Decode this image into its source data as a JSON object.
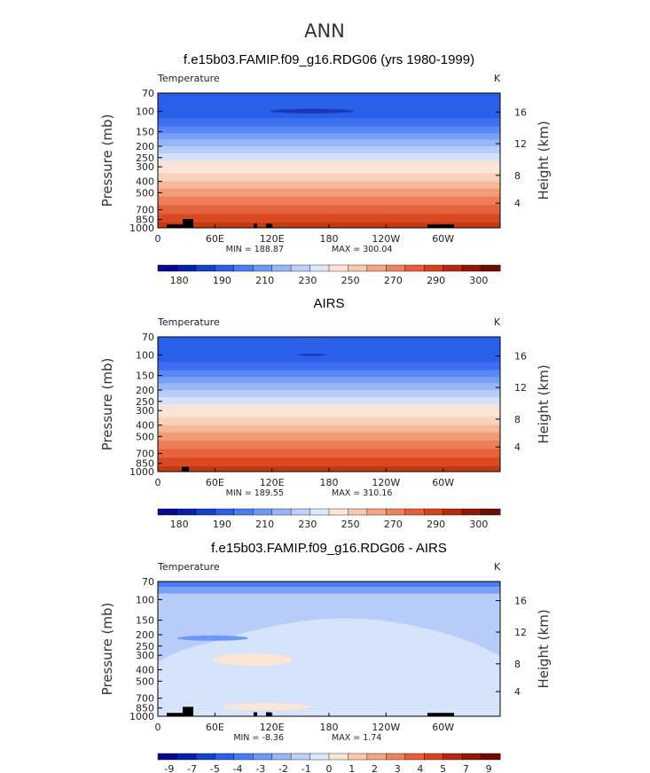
{
  "figure": {
    "title": "ANN"
  },
  "colors": {
    "temp_bar": [
      "#08088c",
      "#0a1fa8",
      "#1540c8",
      "#2a60e8",
      "#4a7cf2",
      "#6e98f6",
      "#96b6f8",
      "#bcd2fb",
      "#dde8fd",
      "#fbe6d6",
      "#f8c8ad",
      "#f4a585",
      "#ef825e",
      "#e85e38",
      "#d6421a",
      "#b52a0c",
      "#8f1806",
      "#6e0c02"
    ],
    "diff_bar": [
      "#08088c",
      "#0a1fa8",
      "#1540c8",
      "#2a60e8",
      "#4a7cf2",
      "#6e98f6",
      "#96b6f8",
      "#bcd2fb",
      "#dde8fd",
      "#fbe6d6",
      "#f8c8ad",
      "#f4a585",
      "#ef825e",
      "#e85e38",
      "#d6421a",
      "#b52a0c",
      "#8f1806",
      "#6e0c02"
    ]
  },
  "chart_data": [
    {
      "type": "heatmap",
      "panel": "model",
      "title": "f.e15b03.FAMIP.f09_g16.RDG06 (yrs 1980-1999)",
      "variable_label": "Temperature",
      "units": "K",
      "ylabel": "Pressure (mb)",
      "ylabel_right": "Height (km)",
      "y_ticks": [
        "70",
        "100",
        "150",
        "200",
        "250",
        "300",
        "400",
        "500",
        "700",
        "850",
        "1000"
      ],
      "y_ticks_right": [
        "16",
        "12",
        "8",
        "4"
      ],
      "x_ticks": [
        "0",
        "60E",
        "120E",
        "180",
        "120W",
        "60W"
      ],
      "min_label": "MIN = 188.87",
      "max_label": "MAX = 300.04",
      "min": 188.87,
      "max": 300.04,
      "colorbar_labels": [
        "180",
        "190",
        "210",
        "230",
        "250",
        "270",
        "290",
        "300"
      ],
      "band_levels": [
        1,
        2,
        3,
        4,
        5,
        6,
        7,
        8,
        9,
        10,
        11,
        12,
        13,
        14,
        15
      ]
    },
    {
      "type": "heatmap",
      "panel": "obs",
      "title": "AIRS",
      "variable_label": "Temperature",
      "units": "K",
      "ylabel": "Pressure (mb)",
      "ylabel_right": "Height (km)",
      "y_ticks": [
        "70",
        "100",
        "150",
        "200",
        "250",
        "300",
        "400",
        "500",
        "700",
        "850",
        "1000"
      ],
      "y_ticks_right": [
        "16",
        "12",
        "8",
        "4"
      ],
      "x_ticks": [
        "0",
        "60E",
        "120E",
        "180",
        "120W",
        "60W"
      ],
      "min_label": "MIN = 189.55",
      "max_label": "MAX = 310.16",
      "min": 189.55,
      "max": 310.16,
      "colorbar_labels": [
        "180",
        "190",
        "210",
        "230",
        "250",
        "270",
        "290",
        "300"
      ],
      "band_levels": [
        1,
        2,
        3,
        4,
        5,
        6,
        7,
        8,
        9,
        10,
        11,
        12,
        13,
        14,
        15
      ]
    },
    {
      "type": "heatmap",
      "panel": "difference",
      "title": "f.e15b03.FAMIP.f09_g16.RDG06 - AIRS",
      "variable_label": "Temperature",
      "units": "K",
      "ylabel": "Pressure (mb)",
      "ylabel_right": "Height (km)",
      "y_ticks": [
        "70",
        "100",
        "150",
        "200",
        "250",
        "300",
        "400",
        "500",
        "700",
        "850",
        "1000"
      ],
      "y_ticks_right": [
        "16",
        "12",
        "8",
        "4"
      ],
      "x_ticks": [
        "0",
        "60E",
        "120E",
        "180",
        "120W",
        "60W"
      ],
      "min_label": "MIN = -8.36",
      "max_label": "MAX = 1.74",
      "min": -8.36,
      "max": 1.74,
      "colorbar_labels": [
        "-9",
        "-7",
        "-5",
        "-4",
        "-3",
        "-2",
        "-1",
        "0",
        "1",
        "2",
        "3",
        "4",
        "5",
        "7",
        "9"
      ]
    }
  ]
}
